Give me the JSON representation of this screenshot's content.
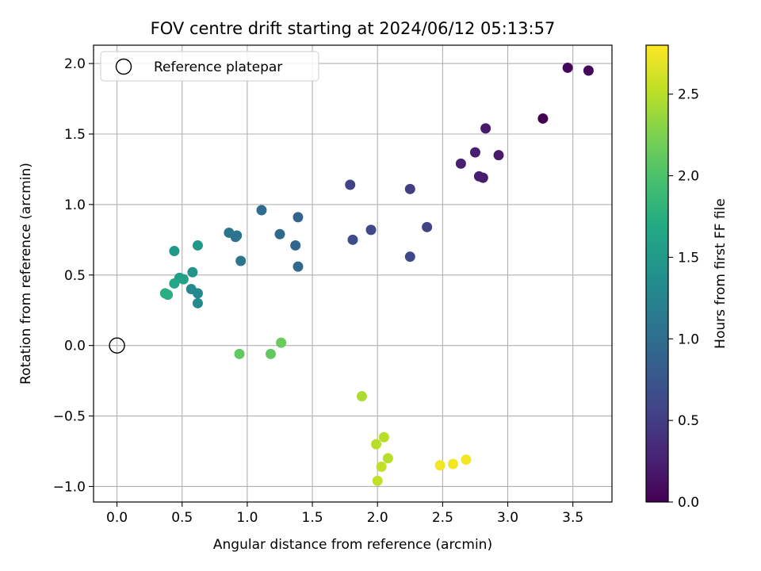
{
  "chart_data": {
    "type": "scatter",
    "title": "FOV centre drift starting at 2024/06/12 05:13:57",
    "xlabel": "Angular distance from reference (arcmin)",
    "ylabel": "Rotation from reference (arcmin)",
    "xlim": [
      -0.18,
      3.8
    ],
    "ylim": [
      -1.11,
      2.13
    ],
    "xticks": [
      "0.0",
      "0.5",
      "1.0",
      "1.5",
      "2.0",
      "2.5",
      "3.0",
      "3.5"
    ],
    "xtick_values": [
      0,
      0.5,
      1.0,
      1.5,
      2.0,
      2.5,
      3.0,
      3.5
    ],
    "yticks": [
      "−1.0",
      "−0.5",
      "0.0",
      "0.5",
      "1.0",
      "1.5",
      "2.0"
    ],
    "ytick_values": [
      -1.0,
      -0.5,
      0.0,
      0.5,
      1.0,
      1.5,
      2.0
    ],
    "grid": true,
    "legend": {
      "placement": "upper-left",
      "entries": [
        {
          "label": "Reference platepar",
          "marker": "open-circle",
          "x": 0.0,
          "y": 0.0
        }
      ]
    },
    "colorbar": {
      "label": "Hours from first FF file",
      "colormap": "viridis",
      "range": [
        0.0,
        2.8
      ],
      "ticks": [
        "0.0",
        "0.5",
        "1.0",
        "1.5",
        "2.0",
        "2.5"
      ],
      "tick_values": [
        0,
        0.5,
        1.0,
        1.5,
        2.0,
        2.5
      ]
    },
    "points": [
      {
        "x": 3.27,
        "y": 1.61,
        "hours": 0.0
      },
      {
        "x": 3.46,
        "y": 1.97,
        "hours": 0.05
      },
      {
        "x": 3.62,
        "y": 1.95,
        "hours": 0.05
      },
      {
        "x": 2.83,
        "y": 1.54,
        "hours": 0.2
      },
      {
        "x": 2.93,
        "y": 1.35,
        "hours": 0.2
      },
      {
        "x": 2.75,
        "y": 1.37,
        "hours": 0.25
      },
      {
        "x": 2.64,
        "y": 1.29,
        "hours": 0.25
      },
      {
        "x": 2.78,
        "y": 1.2,
        "hours": 0.22
      },
      {
        "x": 2.81,
        "y": 1.19,
        "hours": 0.22
      },
      {
        "x": 2.25,
        "y": 1.11,
        "hours": 0.5
      },
      {
        "x": 2.38,
        "y": 0.84,
        "hours": 0.55
      },
      {
        "x": 2.25,
        "y": 0.63,
        "hours": 0.6
      },
      {
        "x": 1.95,
        "y": 0.82,
        "hours": 0.6
      },
      {
        "x": 1.81,
        "y": 0.75,
        "hours": 0.65
      },
      {
        "x": 1.79,
        "y": 1.14,
        "hours": 0.55
      },
      {
        "x": 1.39,
        "y": 0.91,
        "hours": 0.9
      },
      {
        "x": 1.37,
        "y": 0.71,
        "hours": 0.9
      },
      {
        "x": 1.39,
        "y": 0.56,
        "hours": 0.95
      },
      {
        "x": 1.25,
        "y": 0.79,
        "hours": 0.95
      },
      {
        "x": 1.11,
        "y": 0.96,
        "hours": 1.0
      },
      {
        "x": 0.92,
        "y": 0.78,
        "hours": 1.05
      },
      {
        "x": 0.91,
        "y": 0.77,
        "hours": 1.05
      },
      {
        "x": 0.86,
        "y": 0.8,
        "hours": 1.1
      },
      {
        "x": 0.95,
        "y": 0.6,
        "hours": 1.1
      },
      {
        "x": 0.62,
        "y": 0.71,
        "hours": 1.5
      },
      {
        "x": 0.44,
        "y": 0.67,
        "hours": 1.5
      },
      {
        "x": 0.58,
        "y": 0.52,
        "hours": 1.45
      },
      {
        "x": 0.57,
        "y": 0.4,
        "hours": 1.3
      },
      {
        "x": 0.62,
        "y": 0.37,
        "hours": 1.3
      },
      {
        "x": 0.62,
        "y": 0.3,
        "hours": 1.3
      },
      {
        "x": 0.48,
        "y": 0.48,
        "hours": 1.55
      },
      {
        "x": 0.51,
        "y": 0.47,
        "hours": 1.6
      },
      {
        "x": 0.44,
        "y": 0.44,
        "hours": 1.65
      },
      {
        "x": 0.37,
        "y": 0.37,
        "hours": 1.75
      },
      {
        "x": 0.39,
        "y": 0.36,
        "hours": 1.75
      },
      {
        "x": 0.94,
        "y": -0.06,
        "hours": 2.1
      },
      {
        "x": 1.18,
        "y": -0.06,
        "hours": 2.1
      },
      {
        "x": 1.26,
        "y": 0.02,
        "hours": 2.15
      },
      {
        "x": 1.88,
        "y": -0.36,
        "hours": 2.45
      },
      {
        "x": 1.99,
        "y": -0.7,
        "hours": 2.5
      },
      {
        "x": 2.05,
        "y": -0.65,
        "hours": 2.5
      },
      {
        "x": 2.08,
        "y": -0.8,
        "hours": 2.5
      },
      {
        "x": 2.03,
        "y": -0.86,
        "hours": 2.55
      },
      {
        "x": 2.0,
        "y": -0.96,
        "hours": 2.55
      },
      {
        "x": 2.48,
        "y": -0.85,
        "hours": 2.75
      },
      {
        "x": 2.58,
        "y": -0.84,
        "hours": 2.75
      },
      {
        "x": 2.68,
        "y": -0.81,
        "hours": 2.75
      }
    ]
  }
}
